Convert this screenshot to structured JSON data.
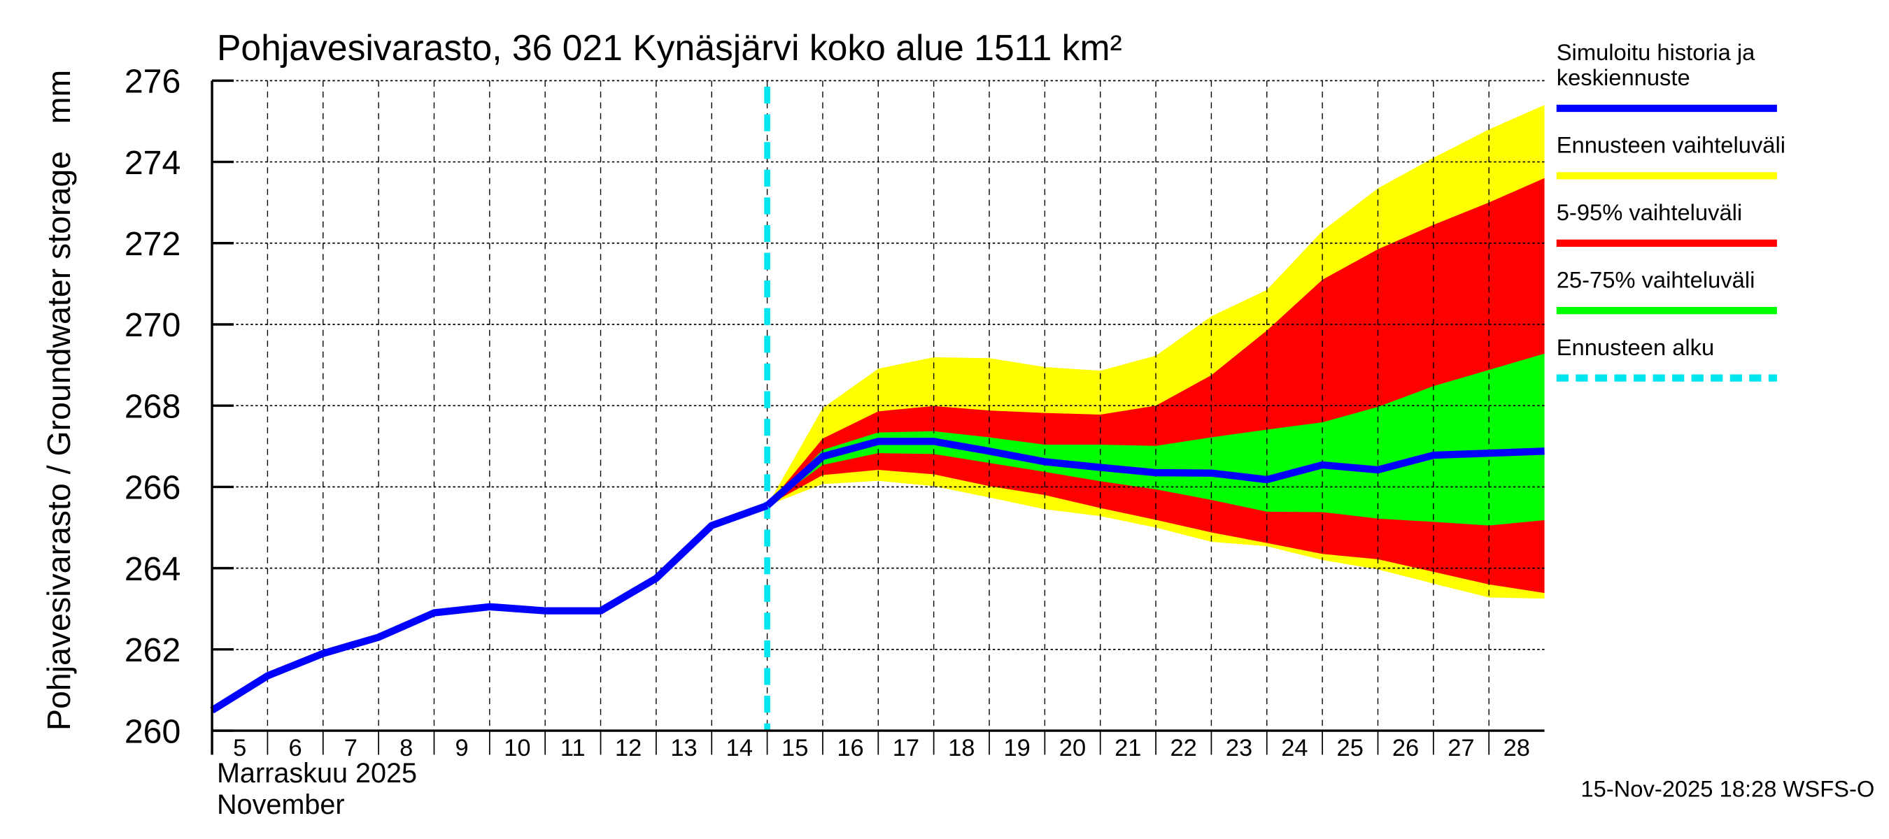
{
  "chart_data": {
    "type": "area",
    "title": "Pohjavesivarasto, 36 021 Kynäsjärvi koko alue 1511 km²",
    "ylabel": "Pohjavesivarasto / Groundwater storage   mm",
    "xlabel_lines": [
      "Marraskuu 2025",
      "November"
    ],
    "ylim": [
      260,
      276
    ],
    "yticks": [
      260,
      262,
      264,
      266,
      268,
      270,
      272,
      274,
      276
    ],
    "xlim": [
      5,
      29
    ],
    "xticks": [
      5,
      6,
      7,
      8,
      9,
      10,
      11,
      12,
      13,
      14,
      15,
      16,
      17,
      18,
      19,
      20,
      21,
      22,
      23,
      24,
      25,
      26,
      27,
      28
    ],
    "grid": true,
    "legend_position": "right",
    "forecast_start_day": 15,
    "history": {
      "name": "Simuloitu historia ja keskiennuste",
      "x": [
        5,
        6,
        7,
        8,
        9,
        10,
        11,
        12,
        13,
        14,
        15
      ],
      "y": [
        260.5,
        261.35,
        261.9,
        262.3,
        262.9,
        263.05,
        262.95,
        262.95,
        263.75,
        265.05,
        265.54
      ]
    },
    "forecast_x": [
      15,
      16,
      17,
      18,
      19,
      20,
      21,
      22,
      23,
      24,
      25,
      26,
      27,
      28,
      29
    ],
    "median": [
      265.54,
      266.75,
      267.12,
      267.12,
      266.88,
      266.62,
      266.48,
      266.35,
      266.34,
      266.18,
      266.54,
      266.42,
      266.78,
      266.83,
      266.88
    ],
    "bands": [
      {
        "name": "Ennusteen vaihteluväli",
        "color": "#ffff00",
        "upper": [
          265.54,
          267.94,
          268.91,
          269.19,
          269.17,
          268.95,
          268.86,
          269.23,
          270.2,
          270.85,
          272.3,
          273.35,
          274.1,
          274.8,
          275.4
        ],
        "lower": [
          265.54,
          266.07,
          266.15,
          266.02,
          265.74,
          265.45,
          265.28,
          265.0,
          264.65,
          264.54,
          264.2,
          263.97,
          263.62,
          263.28,
          263.25
        ]
      },
      {
        "name": "5-95% vaihteluväli",
        "color": "#ff0000",
        "upper": [
          265.54,
          267.19,
          267.86,
          267.99,
          267.88,
          267.82,
          267.78,
          268.0,
          268.75,
          269.85,
          271.1,
          271.85,
          272.45,
          273.0,
          273.6
        ],
        "lower": [
          265.54,
          266.29,
          266.42,
          266.31,
          266.02,
          265.8,
          265.48,
          265.19,
          264.88,
          264.62,
          264.35,
          264.22,
          263.91,
          263.6,
          263.39
        ]
      },
      {
        "name": "25-75% vaihteluväli",
        "color": "#00ff00",
        "upper": [
          265.54,
          266.91,
          267.34,
          267.37,
          267.22,
          267.04,
          267.04,
          267.01,
          267.22,
          267.41,
          267.59,
          267.97,
          268.48,
          268.88,
          269.28
        ],
        "lower": [
          265.54,
          266.54,
          266.83,
          266.81,
          266.59,
          266.37,
          266.14,
          265.94,
          265.68,
          265.39,
          265.38,
          265.22,
          265.14,
          265.05,
          265.18
        ]
      }
    ],
    "legend": [
      {
        "label_lines": [
          "Simuloitu historia ja",
          "keskiennuste"
        ],
        "color": "#0000ff",
        "style": "solid"
      },
      {
        "label_lines": [
          "Ennusteen vaihteluväli"
        ],
        "color": "#ffff00",
        "style": "solid"
      },
      {
        "label_lines": [
          "5-95% vaihteluväli"
        ],
        "color": "#ff0000",
        "style": "solid"
      },
      {
        "label_lines": [
          "25-75% vaihteluväli"
        ],
        "color": "#00ff00",
        "style": "solid"
      },
      {
        "label_lines": [
          "Ennusteen alku"
        ],
        "color": "#00e5ee",
        "style": "dashed"
      }
    ],
    "footer": "15-Nov-2025 18:28 WSFS-O"
  }
}
